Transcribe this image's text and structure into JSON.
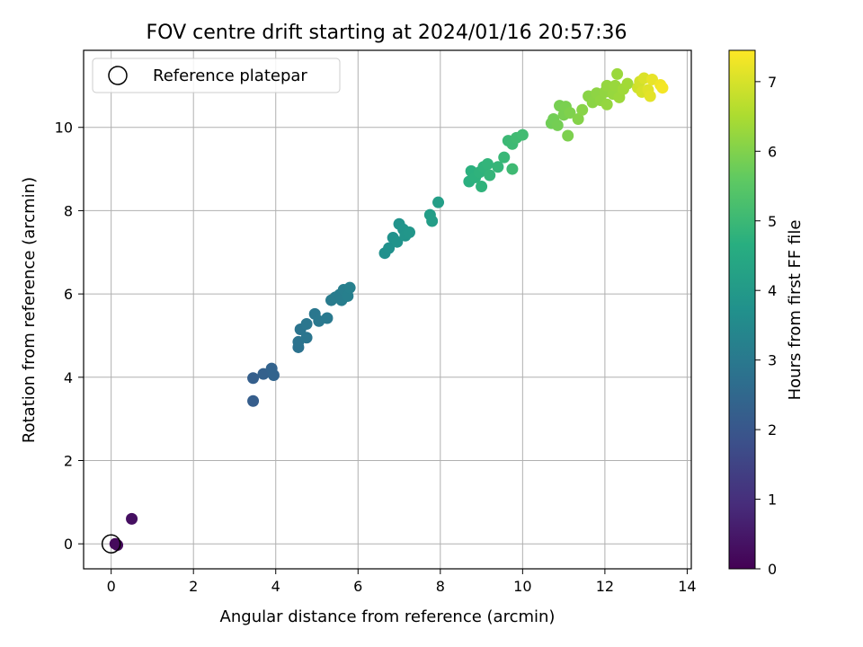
{
  "chart_data": {
    "type": "scatter",
    "title": "FOV centre drift starting at 2024/01/16 20:57:36",
    "xlabel": "Angular distance from reference (arcmin)",
    "ylabel": "Rotation from reference (arcmin)",
    "xlim": [
      -0.67,
      14.1
    ],
    "ylim": [
      -0.6,
      11.85
    ],
    "xticks": [
      0,
      2,
      4,
      6,
      8,
      10,
      12,
      14
    ],
    "yticks": [
      0,
      2,
      4,
      6,
      8,
      10
    ],
    "grid": true,
    "legend": {
      "placement": "top-left",
      "entries": [
        "Reference platepar"
      ]
    },
    "reference_point": {
      "x": 0,
      "y": 0,
      "label": "Reference platepar"
    },
    "colorbar": {
      "label": "Hours from first FF file",
      "range": [
        0,
        7.45
      ],
      "ticks": [
        0,
        1,
        2,
        3,
        4,
        5,
        6,
        7
      ],
      "colormap": "viridis"
    },
    "series": [
      {
        "points": [
          {
            "x": 0.1,
            "y": 0.0,
            "c": 0.15
          },
          {
            "x": 0.15,
            "y": -0.03,
            "c": 0.2
          },
          {
            "x": 0.5,
            "y": 0.6,
            "c": 0.3
          },
          {
            "x": 3.45,
            "y": 3.43,
            "c": 2.2
          },
          {
            "x": 3.45,
            "y": 3.98,
            "c": 2.25
          },
          {
            "x": 3.7,
            "y": 4.08,
            "c": 2.3
          },
          {
            "x": 3.9,
            "y": 4.21,
            "c": 2.35
          },
          {
            "x": 3.95,
            "y": 4.05,
            "c": 2.4
          },
          {
            "x": 4.55,
            "y": 4.72,
            "c": 2.8
          },
          {
            "x": 4.55,
            "y": 4.85,
            "c": 2.82
          },
          {
            "x": 4.6,
            "y": 5.15,
            "c": 2.85
          },
          {
            "x": 4.75,
            "y": 4.95,
            "c": 2.88
          },
          {
            "x": 4.75,
            "y": 5.28,
            "c": 2.9
          },
          {
            "x": 4.95,
            "y": 5.52,
            "c": 2.95
          },
          {
            "x": 5.05,
            "y": 5.35,
            "c": 2.98
          },
          {
            "x": 5.25,
            "y": 5.42,
            "c": 3.0
          },
          {
            "x": 5.35,
            "y": 5.85,
            "c": 3.05
          },
          {
            "x": 5.45,
            "y": 5.92,
            "c": 3.08
          },
          {
            "x": 5.55,
            "y": 5.98,
            "c": 3.1
          },
          {
            "x": 5.6,
            "y": 5.85,
            "c": 3.12
          },
          {
            "x": 5.65,
            "y": 6.1,
            "c": 3.15
          },
          {
            "x": 5.75,
            "y": 5.95,
            "c": 3.18
          },
          {
            "x": 5.8,
            "y": 6.15,
            "c": 3.2
          },
          {
            "x": 6.65,
            "y": 6.98,
            "c": 3.7
          },
          {
            "x": 6.75,
            "y": 7.1,
            "c": 3.72
          },
          {
            "x": 6.85,
            "y": 7.35,
            "c": 3.75
          },
          {
            "x": 6.95,
            "y": 7.25,
            "c": 3.78
          },
          {
            "x": 7.0,
            "y": 7.68,
            "c": 3.8
          },
          {
            "x": 7.1,
            "y": 7.55,
            "c": 3.82
          },
          {
            "x": 7.15,
            "y": 7.4,
            "c": 3.85
          },
          {
            "x": 7.25,
            "y": 7.48,
            "c": 3.88
          },
          {
            "x": 7.75,
            "y": 7.9,
            "c": 4.1
          },
          {
            "x": 7.8,
            "y": 7.75,
            "c": 4.12
          },
          {
            "x": 7.95,
            "y": 8.2,
            "c": 4.15
          },
          {
            "x": 8.7,
            "y": 8.7,
            "c": 4.7
          },
          {
            "x": 8.75,
            "y": 8.95,
            "c": 4.72
          },
          {
            "x": 8.85,
            "y": 8.8,
            "c": 4.75
          },
          {
            "x": 8.95,
            "y": 8.92,
            "c": 4.78
          },
          {
            "x": 9.0,
            "y": 8.58,
            "c": 4.8
          },
          {
            "x": 9.05,
            "y": 9.05,
            "c": 4.82
          },
          {
            "x": 9.15,
            "y": 9.12,
            "c": 4.85
          },
          {
            "x": 9.2,
            "y": 8.85,
            "c": 4.88
          },
          {
            "x": 9.4,
            "y": 9.05,
            "c": 4.9
          },
          {
            "x": 9.55,
            "y": 9.28,
            "c": 4.95
          },
          {
            "x": 9.65,
            "y": 9.68,
            "c": 5.0
          },
          {
            "x": 9.75,
            "y": 9.6,
            "c": 5.03
          },
          {
            "x": 9.75,
            "y": 9.0,
            "c": 5.05
          },
          {
            "x": 9.85,
            "y": 9.75,
            "c": 5.08
          },
          {
            "x": 10.0,
            "y": 9.82,
            "c": 5.1
          },
          {
            "x": 10.7,
            "y": 10.1,
            "c": 5.8
          },
          {
            "x": 10.75,
            "y": 10.2,
            "c": 5.82
          },
          {
            "x": 10.85,
            "y": 10.05,
            "c": 5.85
          },
          {
            "x": 10.9,
            "y": 10.52,
            "c": 5.88
          },
          {
            "x": 11.0,
            "y": 10.3,
            "c": 5.9
          },
          {
            "x": 11.05,
            "y": 10.5,
            "c": 5.92
          },
          {
            "x": 11.1,
            "y": 9.8,
            "c": 5.95
          },
          {
            "x": 11.15,
            "y": 10.35,
            "c": 5.98
          },
          {
            "x": 11.35,
            "y": 10.2,
            "c": 6.05
          },
          {
            "x": 11.45,
            "y": 10.42,
            "c": 6.08
          },
          {
            "x": 11.6,
            "y": 10.75,
            "c": 6.1
          },
          {
            "x": 11.7,
            "y": 10.6,
            "c": 6.12
          },
          {
            "x": 11.8,
            "y": 10.82,
            "c": 6.15
          },
          {
            "x": 11.9,
            "y": 10.65,
            "c": 6.18
          },
          {
            "x": 12.0,
            "y": 10.85,
            "c": 6.2
          },
          {
            "x": 12.05,
            "y": 10.55,
            "c": 6.22
          },
          {
            "x": 12.05,
            "y": 11.0,
            "c": 6.24
          },
          {
            "x": 12.2,
            "y": 10.8,
            "c": 6.26
          },
          {
            "x": 12.25,
            "y": 11.0,
            "c": 6.28
          },
          {
            "x": 12.3,
            "y": 11.28,
            "c": 6.3
          },
          {
            "x": 12.35,
            "y": 10.72,
            "c": 6.32
          },
          {
            "x": 12.45,
            "y": 10.92,
            "c": 6.35
          },
          {
            "x": 12.55,
            "y": 11.05,
            "c": 6.38
          },
          {
            "x": 12.8,
            "y": 10.95,
            "c": 6.9
          },
          {
            "x": 12.85,
            "y": 11.1,
            "c": 6.95
          },
          {
            "x": 12.9,
            "y": 10.85,
            "c": 7.0
          },
          {
            "x": 12.95,
            "y": 11.18,
            "c": 7.05
          },
          {
            "x": 13.05,
            "y": 10.9,
            "c": 7.1
          },
          {
            "x": 13.1,
            "y": 10.75,
            "c": 7.15
          },
          {
            "x": 13.15,
            "y": 11.15,
            "c": 7.2
          },
          {
            "x": 13.35,
            "y": 11.02,
            "c": 7.3
          },
          {
            "x": 13.4,
            "y": 10.95,
            "c": 7.35
          }
        ]
      }
    ]
  }
}
